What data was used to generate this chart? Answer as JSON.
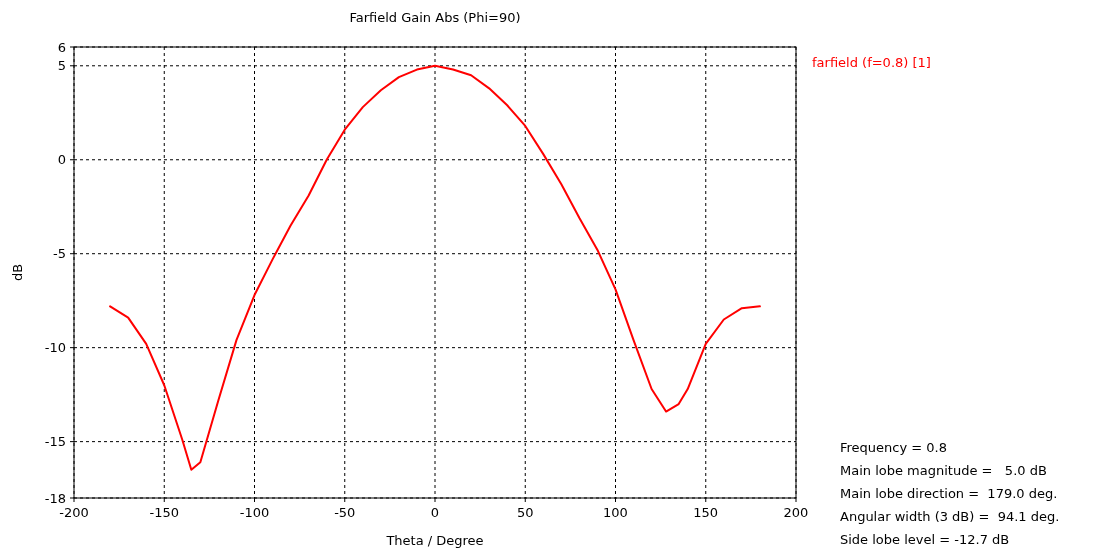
{
  "chart_data": {
    "type": "line",
    "title": "Farfield Gain Abs (Phi=90)",
    "xlabel": "Theta / Degree",
    "ylabel": "dB",
    "x": [
      -180,
      -170,
      -160,
      -150,
      -140,
      -135,
      -130,
      -120,
      -110,
      -100,
      -90,
      -80,
      -70,
      -60,
      -50,
      -40,
      -30,
      -20,
      -10,
      0,
      10,
      20,
      30,
      40,
      50,
      60,
      70,
      80,
      90,
      100,
      110,
      120,
      128,
      135,
      140,
      150,
      160,
      170,
      180
    ],
    "series": [
      {
        "name": "farfield (f=0.8) [1]",
        "color": "#ff0000",
        "values": [
          -7.8,
          -8.4,
          -9.8,
          -12.0,
          -14.9,
          -16.5,
          -16.1,
          -12.8,
          -9.6,
          -7.2,
          -5.3,
          -3.5,
          -1.9,
          0.0,
          1.6,
          2.8,
          3.7,
          4.4,
          4.8,
          5.0,
          4.8,
          4.5,
          3.8,
          2.9,
          1.8,
          0.3,
          -1.3,
          -3.1,
          -4.8,
          -6.9,
          -9.6,
          -12.2,
          -13.4,
          -13.0,
          -12.2,
          -9.8,
          -8.5,
          -7.9,
          -7.8
        ]
      }
    ],
    "xlim": [
      -200,
      200
    ],
    "xticks": [
      -200,
      -150,
      -100,
      -50,
      0,
      50,
      100,
      150,
      200
    ],
    "ylim": [
      -18,
      6
    ],
    "yticks": [
      -18,
      -15,
      -10,
      -5,
      0,
      5,
      6
    ],
    "grid": true,
    "legend": "top right",
    "marker": "none",
    "line_style": "solid",
    "annotations": [
      "Frequency = 0.8",
      "Main lobe magnitude =   5.0 dB",
      "Main lobe direction =  179.0 deg.",
      "Angular width (3 dB) =  94.1 deg.",
      "Side lobe level = -12.7 dB"
    ]
  }
}
